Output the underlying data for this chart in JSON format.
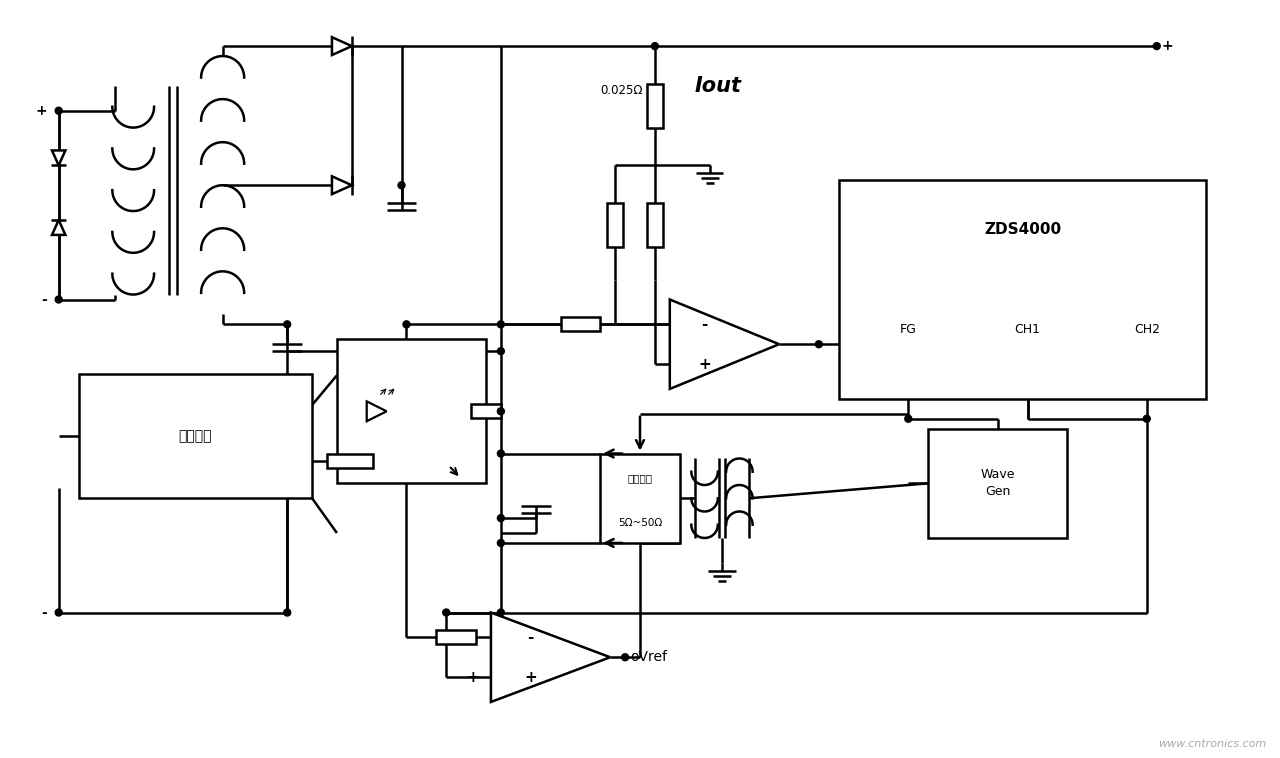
{
  "bg_color": "#ffffff",
  "lc": "#000000",
  "lw": 1.8,
  "fw": 12.8,
  "fh": 7.58,
  "watermark": "www.cntronics.com",
  "switch_label": "开关电路",
  "iout_label": "Iout",
  "resist_label": "0.025Ω",
  "zds_label": "ZDS4000",
  "fg_label": "FG",
  "ch1_label": "CH1",
  "ch2_label": "CH2",
  "wave_label": "Wave\nGen",
  "inj_label1": "注入电阔",
  "inj_label2": "5Ω~50Ω",
  "vref_label": "oVref"
}
